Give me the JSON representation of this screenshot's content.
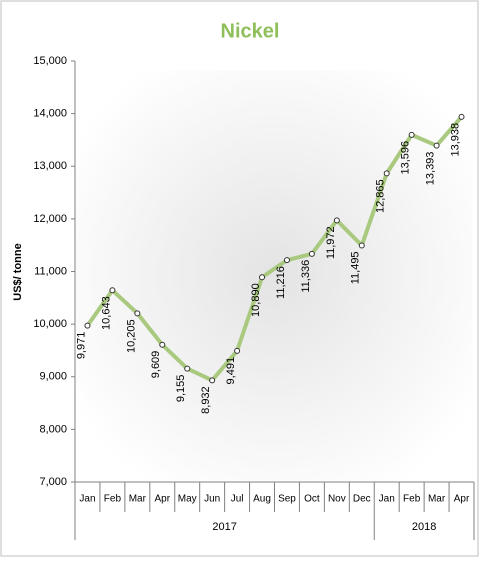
{
  "chart_data": {
    "type": "line",
    "title": "Nickel",
    "y_label": "US$/ tonne",
    "groups": [
      {
        "name": "2017",
        "categories": [
          "Jan",
          "Feb",
          "Mar",
          "Apr",
          "May",
          "Jun",
          "Jul",
          "Aug",
          "Sep",
          "Oct",
          "Nov",
          "Dec"
        ]
      },
      {
        "name": "2018",
        "categories": [
          "Jan",
          "Feb",
          "Mar",
          "Apr"
        ]
      }
    ],
    "values": [
      9971,
      10643,
      10205,
      9609,
      9155,
      8932,
      9491,
      10890,
      11216,
      11336,
      11972,
      11495,
      12865,
      13596,
      13393,
      13938
    ],
    "value_labels": [
      "9,971",
      "10,643",
      "10,205",
      "9,609",
      "9,155",
      "8,932",
      "9,491",
      "10,890",
      "11,216",
      "11,336",
      "11,972",
      "11,495",
      "12,865",
      "13,596",
      "13,393",
      "13,938"
    ],
    "color": "#a9c97f",
    "ylim": [
      7000,
      15000
    ],
    "yticks": [
      {
        "value": 7000,
        "label": "7,000"
      },
      {
        "value": 8000,
        "label": "8,000"
      },
      {
        "value": 9000,
        "label": "9,000"
      },
      {
        "value": 10000,
        "label": "10,000"
      },
      {
        "value": 11000,
        "label": "11,000"
      },
      {
        "value": 12000,
        "label": "12,000"
      },
      {
        "value": 13000,
        "label": "13,000"
      },
      {
        "value": 14000,
        "label": "14,000"
      },
      {
        "value": 15000,
        "label": "15,000"
      }
    ],
    "grid": false
  }
}
